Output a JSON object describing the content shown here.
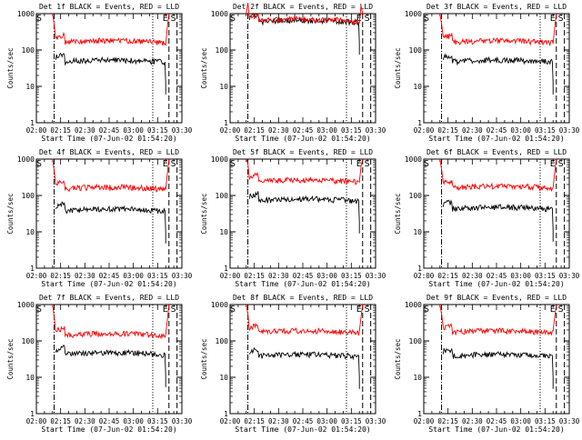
{
  "figure": {
    "start_time_label": "Start Time (07-Jun-02 01:54:20)",
    "ylabel": "Counts/sec",
    "x_tick_labels": [
      "02:00",
      "02:15",
      "02:30",
      "02:45",
      "03:00",
      "03:15",
      "03:30"
    ],
    "y_tick_labels": [
      "1",
      "10",
      "100",
      "1000"
    ],
    "marker_labels": [
      "S",
      "E",
      "S"
    ],
    "colors": {
      "events": "#000000",
      "lld": "#ff0000",
      "axes": "#000000"
    }
  },
  "chart_data": [
    {
      "type": "line",
      "title": "Det 1f BLACK = Events, RED = LLD",
      "xlabel": "Start Time (07-Jun-02 01:54:20)",
      "ylabel": "Counts/sec",
      "y_scale": "log",
      "ylim": [
        1,
        1000
      ],
      "xlim": [
        "02:00",
        "03:30"
      ],
      "series": [
        {
          "name": "Events",
          "color": "#000000",
          "start": "02:12",
          "end": "03:20",
          "level": 50
        },
        {
          "name": "LLD",
          "color": "#ff0000",
          "start": "02:12",
          "end": "03:20",
          "level": 170
        }
      ],
      "markers": [
        {
          "label": "S",
          "time": "02:00",
          "style": "solid"
        },
        {
          "label": "",
          "time": "02:11",
          "style": "dash-dot"
        },
        {
          "label": "",
          "time": "03:12",
          "style": "dotted"
        },
        {
          "label": "E",
          "time": "03:22",
          "style": "dashed"
        },
        {
          "label": "S",
          "time": "03:27",
          "style": "dashed"
        }
      ]
    },
    {
      "type": "line",
      "title": "Det 2f BLACK = Events, RED = LLD",
      "xlabel": "Start Time (07-Jun-02 01:54:20)",
      "ylabel": "Counts/sec",
      "y_scale": "log",
      "ylim": [
        1,
        1000
      ],
      "xlim": [
        "02:00",
        "03:30"
      ],
      "series": [
        {
          "name": "Events",
          "color": "#000000",
          "start": "02:12",
          "end": "03:20",
          "level": 620
        },
        {
          "name": "LLD",
          "color": "#ff0000",
          "start": "02:12",
          "end": "03:20",
          "level": 660
        }
      ],
      "markers": [
        {
          "label": "S",
          "time": "02:00",
          "style": "solid"
        },
        {
          "label": "",
          "time": "02:11",
          "style": "dash-dot"
        },
        {
          "label": "",
          "time": "03:12",
          "style": "dotted"
        },
        {
          "label": "E",
          "time": "03:22",
          "style": "dashed"
        },
        {
          "label": "S",
          "time": "03:27",
          "style": "dashed"
        }
      ]
    },
    {
      "type": "line",
      "title": "Det 3f BLACK = Events, RED = LLD",
      "xlabel": "Start Time (07-Jun-02 01:54:20)",
      "ylabel": "Counts/sec",
      "y_scale": "log",
      "ylim": [
        1,
        1000
      ],
      "xlim": [
        "02:00",
        "03:30"
      ],
      "series": [
        {
          "name": "Events",
          "color": "#000000",
          "start": "02:12",
          "end": "03:20",
          "level": 50
        },
        {
          "name": "LLD",
          "color": "#ff0000",
          "start": "02:12",
          "end": "03:20",
          "level": 170
        }
      ],
      "markers": [
        {
          "label": "S",
          "time": "02:00",
          "style": "solid"
        },
        {
          "label": "",
          "time": "02:11",
          "style": "dash-dot"
        },
        {
          "label": "",
          "time": "03:12",
          "style": "dotted"
        },
        {
          "label": "E",
          "time": "03:22",
          "style": "dashed"
        },
        {
          "label": "S",
          "time": "03:27",
          "style": "dashed"
        }
      ]
    },
    {
      "type": "line",
      "title": "Det 4f BLACK = Events, RED = LLD",
      "xlabel": "Start Time (07-Jun-02 01:54:20)",
      "ylabel": "Counts/sec",
      "y_scale": "log",
      "ylim": [
        1,
        1000
      ],
      "xlim": [
        "02:00",
        "03:30"
      ],
      "series": [
        {
          "name": "Events",
          "color": "#000000",
          "start": "02:12",
          "end": "03:20",
          "level": 40
        },
        {
          "name": "LLD",
          "color": "#ff0000",
          "start": "02:12",
          "end": "03:20",
          "level": 160
        }
      ],
      "markers": [
        {
          "label": "S",
          "time": "02:00",
          "style": "solid"
        },
        {
          "label": "",
          "time": "02:11",
          "style": "dash-dot"
        },
        {
          "label": "",
          "time": "03:12",
          "style": "dotted"
        },
        {
          "label": "E",
          "time": "03:22",
          "style": "dashed"
        },
        {
          "label": "S",
          "time": "03:27",
          "style": "dashed"
        }
      ]
    },
    {
      "type": "line",
      "title": "Det 5f BLACK = Events, RED = LLD",
      "xlabel": "Start Time (07-Jun-02 01:54:20)",
      "ylabel": "Counts/sec",
      "y_scale": "log",
      "ylim": [
        1,
        1000
      ],
      "xlim": [
        "02:00",
        "03:30"
      ],
      "series": [
        {
          "name": "Events",
          "color": "#000000",
          "start": "02:12",
          "end": "03:20",
          "level": 75
        },
        {
          "name": "LLD",
          "color": "#ff0000",
          "start": "02:12",
          "end": "03:20",
          "level": 250
        }
      ],
      "markers": [
        {
          "label": "S",
          "time": "02:00",
          "style": "solid"
        },
        {
          "label": "",
          "time": "02:11",
          "style": "dash-dot"
        },
        {
          "label": "",
          "time": "03:12",
          "style": "dotted"
        },
        {
          "label": "E",
          "time": "03:22",
          "style": "dashed"
        },
        {
          "label": "S",
          "time": "03:27",
          "style": "dashed"
        }
      ]
    },
    {
      "type": "line",
      "title": "Det 6f BLACK = Events, RED = LLD",
      "xlabel": "Start Time (07-Jun-02 01:54:20)",
      "ylabel": "Counts/sec",
      "y_scale": "log",
      "ylim": [
        1,
        1000
      ],
      "xlim": [
        "02:00",
        "03:30"
      ],
      "series": [
        {
          "name": "Events",
          "color": "#000000",
          "start": "02:12",
          "end": "03:20",
          "level": 45
        },
        {
          "name": "LLD",
          "color": "#ff0000",
          "start": "02:12",
          "end": "03:20",
          "level": 170
        }
      ],
      "markers": [
        {
          "label": "S",
          "time": "02:00",
          "style": "solid"
        },
        {
          "label": "",
          "time": "02:11",
          "style": "dash-dot"
        },
        {
          "label": "",
          "time": "03:12",
          "style": "dotted"
        },
        {
          "label": "E",
          "time": "03:22",
          "style": "dashed"
        },
        {
          "label": "S",
          "time": "03:27",
          "style": "dashed"
        }
      ]
    },
    {
      "type": "line",
      "title": "Det 7f BLACK = Events, RED = LLD",
      "xlabel": "Start Time (07-Jun-02 01:54:20)",
      "ylabel": "Counts/sec",
      "y_scale": "log",
      "ylim": [
        1,
        1000
      ],
      "xlim": [
        "02:00",
        "03:30"
      ],
      "series": [
        {
          "name": "Events",
          "color": "#000000",
          "start": "02:12",
          "end": "03:20",
          "level": 45
        },
        {
          "name": "LLD",
          "color": "#ff0000",
          "start": "02:12",
          "end": "03:20",
          "level": 150
        }
      ],
      "markers": [
        {
          "label": "S",
          "time": "02:00",
          "style": "solid"
        },
        {
          "label": "",
          "time": "02:11",
          "style": "dash-dot"
        },
        {
          "label": "",
          "time": "03:12",
          "style": "dotted"
        },
        {
          "label": "E",
          "time": "03:22",
          "style": "dashed"
        },
        {
          "label": "S",
          "time": "03:27",
          "style": "dashed"
        }
      ]
    },
    {
      "type": "line",
      "title": "Det 8f BLACK = Events, RED = LLD",
      "xlabel": "Start Time (07-Jun-02 01:54:20)",
      "ylabel": "Counts/sec",
      "y_scale": "log",
      "ylim": [
        1,
        1000
      ],
      "xlim": [
        "02:00",
        "03:30"
      ],
      "series": [
        {
          "name": "Events",
          "color": "#000000",
          "start": "02:12",
          "end": "03:20",
          "level": 40
        },
        {
          "name": "LLD",
          "color": "#ff0000",
          "start": "02:12",
          "end": "03:20",
          "level": 180
        }
      ],
      "markers": [
        {
          "label": "S",
          "time": "02:00",
          "style": "solid"
        },
        {
          "label": "",
          "time": "02:11",
          "style": "dash-dot"
        },
        {
          "label": "",
          "time": "03:12",
          "style": "dotted"
        },
        {
          "label": "E",
          "time": "03:22",
          "style": "dashed"
        },
        {
          "label": "S",
          "time": "03:27",
          "style": "dashed"
        }
      ]
    },
    {
      "type": "line",
      "title": "Det 9f BLACK = Events, RED = LLD",
      "xlabel": "Start Time (07-Jun-02 01:54:20)",
      "ylabel": "Counts/sec",
      "y_scale": "log",
      "ylim": [
        1,
        1000
      ],
      "xlim": [
        "02:00",
        "03:30"
      ],
      "series": [
        {
          "name": "Events",
          "color": "#000000",
          "start": "02:12",
          "end": "03:20",
          "level": 40
        },
        {
          "name": "LLD",
          "color": "#ff0000",
          "start": "02:12",
          "end": "03:20",
          "level": 180
        }
      ],
      "markers": [
        {
          "label": "S",
          "time": "02:00",
          "style": "solid"
        },
        {
          "label": "",
          "time": "02:11",
          "style": "dash-dot"
        },
        {
          "label": "",
          "time": "03:12",
          "style": "dotted"
        },
        {
          "label": "E",
          "time": "03:22",
          "style": "dashed"
        },
        {
          "label": "S",
          "time": "03:27",
          "style": "dashed"
        }
      ]
    }
  ]
}
